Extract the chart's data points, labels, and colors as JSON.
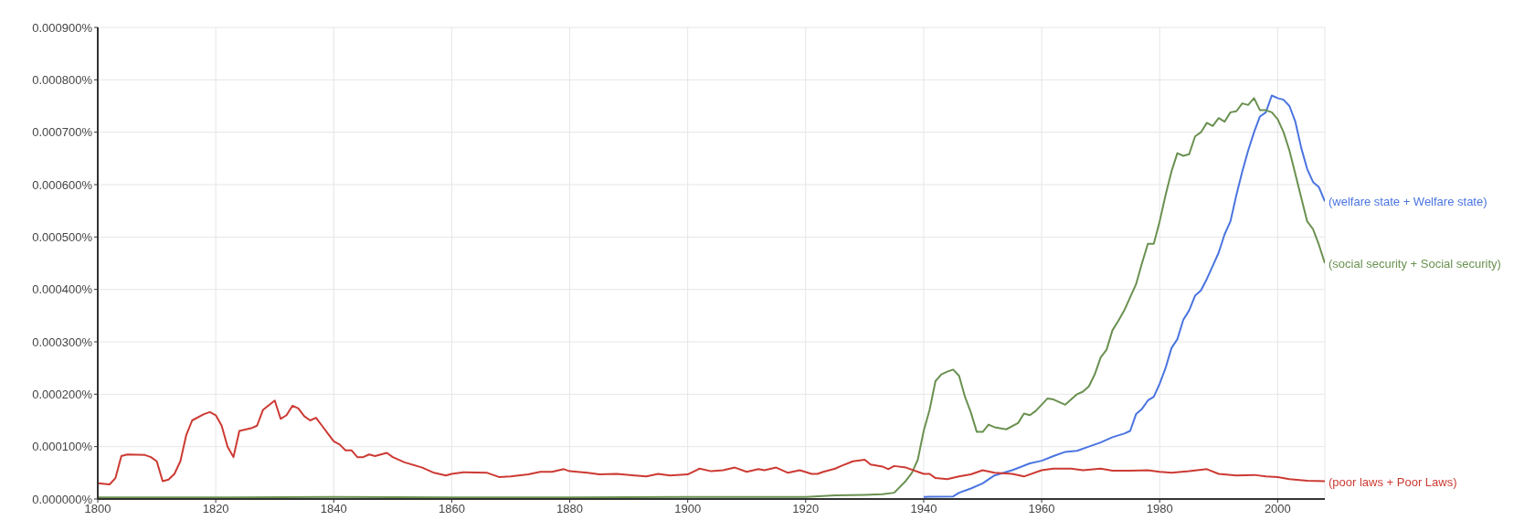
{
  "chart_data": {
    "type": "line",
    "xlim": [
      1800,
      2008
    ],
    "xticks": [
      1800,
      1820,
      1840,
      1860,
      1880,
      1900,
      1920,
      1940,
      1960,
      1980,
      2000
    ],
    "ylim": [
      0,
      0.0009
    ],
    "yticks": [
      {
        "value": 0,
        "label": "0.000000%"
      },
      {
        "value": 0.0001,
        "label": "0.000100%"
      },
      {
        "value": 0.0002,
        "label": "0.000200%"
      },
      {
        "value": 0.0003,
        "label": "0.000300%"
      },
      {
        "value": 0.0004,
        "label": "0.000400%"
      },
      {
        "value": 0.0005,
        "label": "0.000500%"
      },
      {
        "value": 0.0006,
        "label": "0.000600%"
      },
      {
        "value": 0.0007,
        "label": "0.000700%"
      },
      {
        "value": 0.0008,
        "label": "0.000800%"
      },
      {
        "value": 0.0009,
        "label": "0.000900%"
      }
    ],
    "grid": true,
    "legend": false,
    "marker": "none",
    "line_style": "solid",
    "series": [
      {
        "name": "(welfare state + Welfare state)",
        "color": "#4a74e0",
        "x": [
          1940,
          1945,
          1946,
          1948,
          1950,
          1952,
          1955,
          1958,
          1960,
          1962,
          1964,
          1966,
          1968,
          1970,
          1972,
          1974,
          1975,
          1976,
          1977,
          1978,
          1979,
          1980,
          1981,
          1982,
          1983,
          1984,
          1985,
          1986,
          1987,
          1988,
          1989,
          1990,
          1991,
          1992,
          1993,
          1994,
          1995,
          1996,
          1997,
          1998,
          1999,
          2000,
          2001,
          2002,
          2003,
          2004,
          2005,
          2006,
          2007,
          2008
        ],
        "values": [
          4e-06,
          5e-06,
          1.2e-05,
          2e-05,
          3e-05,
          4.5e-05,
          5.5e-05,
          6.8e-05,
          7.3e-05,
          8.2e-05,
          9e-05,
          9.2e-05,
          0.0001,
          0.000108,
          0.000118,
          0.000125,
          0.00013,
          0.000162,
          0.000172,
          0.000188,
          0.000195,
          0.00022,
          0.00025,
          0.000288,
          0.000305,
          0.000342,
          0.00036,
          0.000388,
          0.000398,
          0.00042,
          0.000445,
          0.00047,
          0.000505,
          0.00053,
          0.00058,
          0.000625,
          0.000665,
          0.0007,
          0.00073,
          0.000738,
          0.00077,
          0.000765,
          0.000762,
          0.00075,
          0.00072,
          0.00067,
          0.00063,
          0.000605,
          0.000595,
          0.000568
        ]
      },
      {
        "name": "(social security + Social security)",
        "color": "#6a9150",
        "x": [
          1800,
          1820,
          1840,
          1860,
          1880,
          1900,
          1920,
          1925,
          1930,
          1933,
          1935,
          1937,
          1938,
          1939,
          1940,
          1941,
          1942,
          1943,
          1944,
          1945,
          1946,
          1947,
          1948,
          1949,
          1950,
          1951,
          1952,
          1954,
          1956,
          1957,
          1958,
          1959,
          1961,
          1962,
          1964,
          1966,
          1967,
          1968,
          1969,
          1970,
          1971,
          1972,
          1973,
          1974,
          1976,
          1977,
          1978,
          1979,
          1980,
          1981,
          1982,
          1983,
          1984,
          1985,
          1986,
          1987,
          1988,
          1989,
          1990,
          1991,
          1992,
          1993,
          1994,
          1995,
          1996,
          1997,
          1998,
          1999,
          2000,
          2001,
          2002,
          2003,
          2004,
          2005,
          2006,
          2007,
          2008
        ],
        "values": [
          3e-06,
          3e-06,
          4e-06,
          3e-06,
          3e-06,
          4e-06,
          4e-06,
          7e-06,
          8e-06,
          9e-06,
          1.2e-05,
          3.5e-05,
          5e-05,
          7.5e-05,
          0.00013,
          0.00017,
          0.000225,
          0.000238,
          0.000243,
          0.000247,
          0.000235,
          0.000195,
          0.000165,
          0.000128,
          0.000128,
          0.000142,
          0.000137,
          0.000133,
          0.000145,
          0.000163,
          0.00016,
          0.000168,
          0.000192,
          0.00019,
          0.00018,
          0.0002,
          0.000205,
          0.000215,
          0.000238,
          0.00027,
          0.000285,
          0.000322,
          0.00034,
          0.00036,
          0.00041,
          0.00045,
          0.000487,
          0.000487,
          0.00053,
          0.00058,
          0.000625,
          0.00066,
          0.000655,
          0.000658,
          0.000692,
          0.0007,
          0.000718,
          0.000712,
          0.000727,
          0.00072,
          0.000738,
          0.00074,
          0.000755,
          0.000752,
          0.000765,
          0.000742,
          0.000742,
          0.000738,
          0.000725,
          0.0007,
          0.000665,
          0.00062,
          0.000575,
          0.00053,
          0.000515,
          0.000485,
          0.00045
        ]
      },
      {
        "name": "(poor laws + Poor Laws)",
        "color": "#cc3a33",
        "x": [
          1800,
          1802,
          1803,
          1804,
          1805,
          1808,
          1809,
          1810,
          1811,
          1812,
          1813,
          1814,
          1815,
          1816,
          1818,
          1819,
          1820,
          1821,
          1822,
          1823,
          1824,
          1826,
          1827,
          1828,
          1830,
          1831,
          1832,
          1833,
          1834,
          1835,
          1836,
          1837,
          1838,
          1839,
          1840,
          1841,
          1842,
          1843,
          1844,
          1845,
          1846,
          1847,
          1849,
          1850,
          1852,
          1855,
          1857,
          1859,
          1860,
          1862,
          1866,
          1868,
          1870,
          1873,
          1875,
          1877,
          1879,
          1880,
          1883,
          1885,
          1888,
          1891,
          1893,
          1895,
          1897,
          1900,
          1902,
          1904,
          1906,
          1908,
          1910,
          1912,
          1913,
          1915,
          1917,
          1919,
          1921,
          1922,
          1923,
          1925,
          1926,
          1928,
          1930,
          1931,
          1933,
          1934,
          1935,
          1937,
          1940,
          1941,
          1942,
          1944,
          1946,
          1948,
          1950,
          1952,
          1955,
          1957,
          1960,
          1962,
          1965,
          1967,
          1970,
          1972,
          1975,
          1978,
          1980,
          1982,
          1985,
          1988,
          1990,
          1993,
          1996,
          1998,
          2000,
          2002,
          2005,
          2008
        ],
        "values": [
          3e-05,
          2.8e-05,
          4e-05,
          8.2e-05,
          8.5e-05,
          8.4e-05,
          8e-05,
          7.2e-05,
          3.4e-05,
          3.7e-05,
          4.8e-05,
          7.2e-05,
          0.000122,
          0.00015,
          0.000162,
          0.000166,
          0.00016,
          0.00014,
          0.0001,
          8e-05,
          0.00013,
          0.000135,
          0.00014,
          0.00017,
          0.000188,
          0.000153,
          0.00016,
          0.000178,
          0.000173,
          0.000158,
          0.00015,
          0.000155,
          0.00014,
          0.000125,
          0.00011,
          0.000104,
          9.3e-05,
          9.3e-05,
          8e-05,
          8e-05,
          8.5e-05,
          8.2e-05,
          8.8e-05,
          8e-05,
          7e-05,
          6e-05,
          5e-05,
          4.5e-05,
          4.8e-05,
          5.1e-05,
          5e-05,
          4.2e-05,
          4.3e-05,
          4.7e-05,
          5.2e-05,
          5.2e-05,
          5.7e-05,
          5.3e-05,
          5e-05,
          4.7e-05,
          4.8e-05,
          4.5e-05,
          4.3e-05,
          4.8e-05,
          4.5e-05,
          4.7e-05,
          5.8e-05,
          5.3e-05,
          5.5e-05,
          6e-05,
          5.2e-05,
          5.7e-05,
          5.5e-05,
          6e-05,
          5e-05,
          5.5e-05,
          4.8e-05,
          4.8e-05,
          5.2e-05,
          5.8e-05,
          6.3e-05,
          7.2e-05,
          7.5e-05,
          6.6e-05,
          6.2e-05,
          5.7e-05,
          6.3e-05,
          6e-05,
          4.8e-05,
          4.8e-05,
          4e-05,
          3.8e-05,
          4.3e-05,
          4.7e-05,
          5.5e-05,
          5e-05,
          4.8e-05,
          4.3e-05,
          5.5e-05,
          5.8e-05,
          5.8e-05,
          5.5e-05,
          5.8e-05,
          5.4e-05,
          5.4e-05,
          5.5e-05,
          5.2e-05,
          5e-05,
          5.3e-05,
          5.7e-05,
          4.8e-05,
          4.5e-05,
          4.6e-05,
          4.3e-05,
          4.2e-05,
          3.8e-05,
          3.5e-05,
          3.4e-05
        ]
      }
    ]
  }
}
